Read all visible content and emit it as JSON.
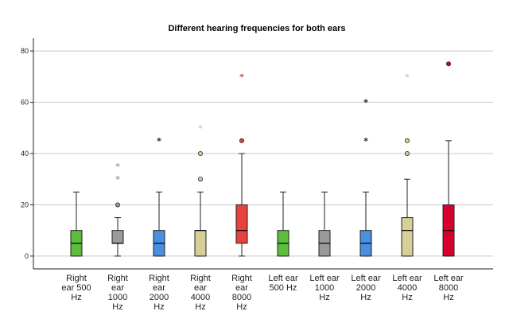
{
  "chart_data": {
    "type": "boxplot",
    "title": "Different hearing frequencies for both ears",
    "xlabel": "",
    "ylabel": "",
    "ylim": [
      -5,
      85
    ],
    "yticks": [
      0,
      20,
      40,
      60,
      80
    ],
    "grid": true,
    "categories": [
      {
        "lines": [
          "Right",
          "ear 500",
          "Hz"
        ]
      },
      {
        "lines": [
          "Right",
          "ear",
          "1000",
          "Hz"
        ]
      },
      {
        "lines": [
          "Right",
          "ear",
          "2000",
          "Hz"
        ]
      },
      {
        "lines": [
          "Right",
          "ear",
          "4000",
          "Hz"
        ]
      },
      {
        "lines": [
          "Right",
          "ear",
          "8000",
          "Hz"
        ]
      },
      {
        "lines": [
          "Left ear",
          "500 Hz"
        ]
      },
      {
        "lines": [
          "Left ear",
          "1000",
          "Hz"
        ]
      },
      {
        "lines": [
          "Left ear",
          "2000",
          "Hz"
        ]
      },
      {
        "lines": [
          "Left ear",
          "4000",
          "Hz"
        ]
      },
      {
        "lines": [
          "Left ear",
          "8000",
          "Hz"
        ]
      }
    ],
    "boxes": [
      {
        "min": 0,
        "q1": 0,
        "median": 5,
        "q3": 10,
        "max": 25,
        "color": "#5bbd3b",
        "outliers": [],
        "extremes": []
      },
      {
        "min": 0,
        "q1": 5,
        "median": 5,
        "q3": 10,
        "max": 15,
        "color": "#9a9a9a",
        "outliers": [
          20
        ],
        "extremes": [
          30,
          35
        ]
      },
      {
        "min": 0,
        "q1": 0,
        "median": 5,
        "q3": 10,
        "max": 25,
        "color": "#4a8fe0",
        "outliers": [],
        "extremes": [
          45
        ]
      },
      {
        "min": 0,
        "q1": 0,
        "median": 10,
        "q3": 10,
        "max": 25,
        "color": "#d6cf96",
        "outliers": [
          30,
          40
        ],
        "extremes": [
          50
        ]
      },
      {
        "min": 0,
        "q1": 5,
        "median": 10,
        "q3": 20,
        "max": 40,
        "color": "#e8423f",
        "outliers": [
          45
        ],
        "extremes": [
          70
        ]
      },
      {
        "min": 0,
        "q1": 0,
        "median": 5,
        "q3": 10,
        "max": 25,
        "color": "#5bbd3b",
        "outliers": [],
        "extremes": []
      },
      {
        "min": 0,
        "q1": 0,
        "median": 5,
        "q3": 10,
        "max": 25,
        "color": "#9a9a9a",
        "outliers": [],
        "extremes": []
      },
      {
        "min": 0,
        "q1": 0,
        "median": 5,
        "q3": 10,
        "max": 25,
        "color": "#4a8fe0",
        "outliers": [],
        "extremes": [
          45,
          60
        ]
      },
      {
        "min": 0,
        "q1": 0,
        "median": 10,
        "q3": 15,
        "max": 30,
        "color": "#d6cf96",
        "outliers": [
          40,
          45
        ],
        "extremes": [
          70
        ]
      },
      {
        "min": 0,
        "q1": 0,
        "median": 10,
        "q3": 20,
        "max": 45,
        "color": "#d9002e",
        "outliers": [
          75
        ],
        "extremes": []
      }
    ]
  }
}
